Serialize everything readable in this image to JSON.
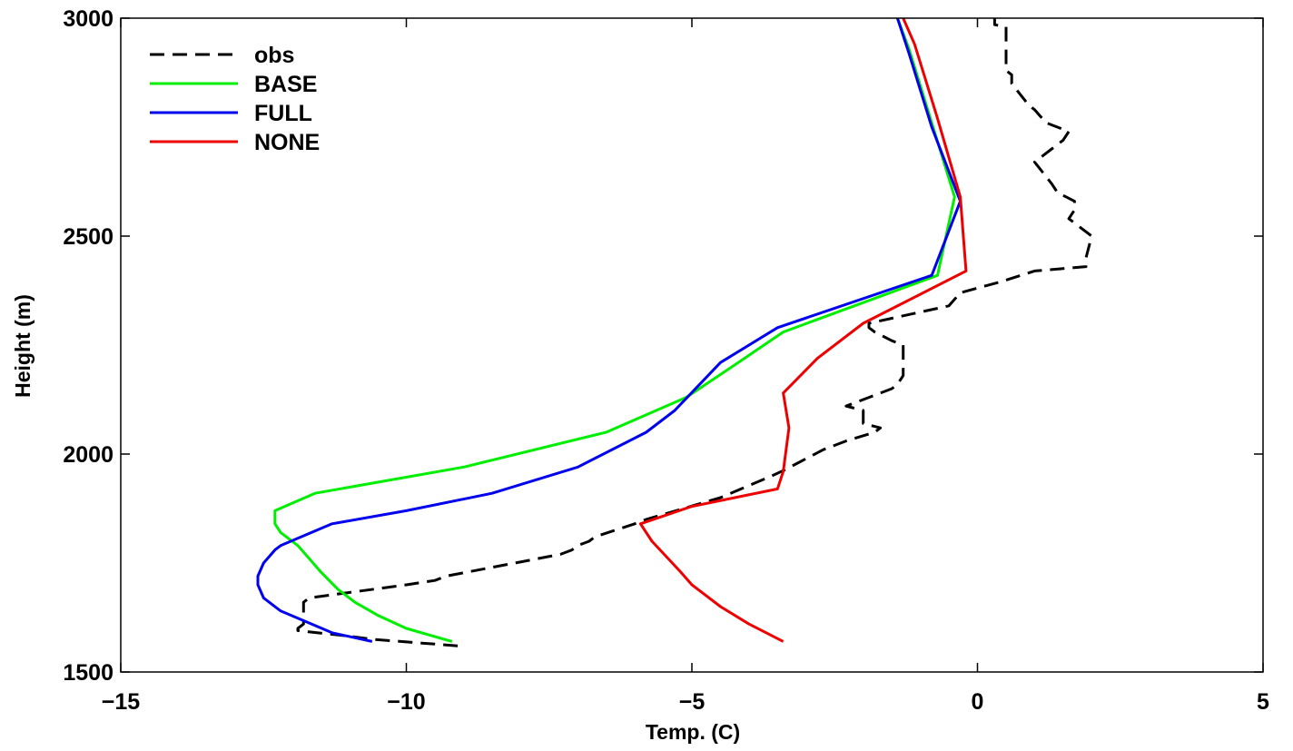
{
  "chart_data": {
    "type": "line",
    "title": "",
    "xlabel": "Temp. (C)",
    "ylabel": "Height (m)",
    "xlim": [
      -15,
      5
    ],
    "ylim": [
      1500,
      3000
    ],
    "xticks": [
      -15,
      -10,
      -5,
      0,
      5
    ],
    "xtick_labels": [
      "−15",
      "−10",
      "−5",
      "0",
      "5"
    ],
    "yticks": [
      1500,
      2000,
      2500,
      3000
    ],
    "ytick_labels": [
      "1500",
      "2000",
      "2500",
      "3000"
    ],
    "grid": false,
    "legend_position": "top-left",
    "series": [
      {
        "name": "obs",
        "color": "#000000",
        "style": "dashed",
        "points": [
          [
            -9.1,
            1560
          ],
          [
            -10.6,
            1575
          ],
          [
            -11.0,
            1582
          ],
          [
            -11.9,
            1595
          ],
          [
            -11.9,
            1600
          ],
          [
            -11.8,
            1610
          ],
          [
            -11.8,
            1660
          ],
          [
            -11.7,
            1670
          ],
          [
            -10.0,
            1700
          ],
          [
            -9.5,
            1710
          ],
          [
            -9.3,
            1720
          ],
          [
            -7.3,
            1770
          ],
          [
            -7.1,
            1780
          ],
          [
            -7.0,
            1790
          ],
          [
            -6.8,
            1800
          ],
          [
            -6.7,
            1810
          ],
          [
            -6.0,
            1840
          ],
          [
            -5.8,
            1850
          ],
          [
            -4.5,
            1900
          ],
          [
            -3.6,
            1950
          ],
          [
            -3.4,
            1962
          ],
          [
            -2.7,
            2010
          ],
          [
            -2.3,
            2030
          ],
          [
            -1.8,
            2050
          ],
          [
            -1.7,
            2060
          ],
          [
            -2.0,
            2070
          ],
          [
            -2.0,
            2090
          ],
          [
            -2.0,
            2100
          ],
          [
            -2.3,
            2110
          ],
          [
            -1.9,
            2130
          ],
          [
            -1.5,
            2150
          ],
          [
            -1.4,
            2160
          ],
          [
            -1.3,
            2180
          ],
          [
            -1.3,
            2230
          ],
          [
            -1.3,
            2250
          ],
          [
            -1.5,
            2260
          ],
          [
            -1.8,
            2280
          ],
          [
            -1.9,
            2290
          ],
          [
            -1.9,
            2300
          ],
          [
            -0.5,
            2340
          ],
          [
            -0.3,
            2370
          ],
          [
            0.4,
            2395
          ],
          [
            1.0,
            2420
          ],
          [
            1.9,
            2430
          ],
          [
            1.9,
            2450
          ],
          [
            2.0,
            2500
          ],
          [
            1.9,
            2510
          ],
          [
            1.7,
            2530
          ],
          [
            1.6,
            2540
          ],
          [
            1.7,
            2560
          ],
          [
            1.7,
            2580
          ],
          [
            1.4,
            2600
          ],
          [
            1.3,
            2620
          ],
          [
            1.0,
            2670
          ],
          [
            1.3,
            2700
          ],
          [
            1.5,
            2720
          ],
          [
            1.6,
            2740
          ],
          [
            1.4,
            2750
          ],
          [
            1.2,
            2760
          ],
          [
            1.0,
            2790
          ],
          [
            0.9,
            2800
          ],
          [
            0.6,
            2850
          ],
          [
            0.6,
            2870
          ],
          [
            0.5,
            2880
          ],
          [
            0.5,
            2900
          ],
          [
            0.5,
            2930
          ],
          [
            0.5,
            2980
          ],
          [
            0.3,
            2985
          ],
          [
            0.3,
            3000
          ]
        ]
      },
      {
        "name": "BASE",
        "color": "#00ee00",
        "style": "solid",
        "points": [
          [
            -9.2,
            1570
          ],
          [
            -10.0,
            1600
          ],
          [
            -10.5,
            1630
          ],
          [
            -10.9,
            1660
          ],
          [
            -11.2,
            1690
          ],
          [
            -11.5,
            1730
          ],
          [
            -11.7,
            1760
          ],
          [
            -11.9,
            1790
          ],
          [
            -12.2,
            1820
          ],
          [
            -12.3,
            1840
          ],
          [
            -12.3,
            1870
          ],
          [
            -11.6,
            1910
          ],
          [
            -9.0,
            1970
          ],
          [
            -6.5,
            2050
          ],
          [
            -5.1,
            2130
          ],
          [
            -4.3,
            2200
          ],
          [
            -3.4,
            2280
          ],
          [
            -0.7,
            2410
          ],
          [
            -0.4,
            2590
          ],
          [
            -1.2,
            2930
          ],
          [
            -1.4,
            3000
          ]
        ]
      },
      {
        "name": "FULL",
        "color": "#0000ee",
        "style": "solid",
        "points": [
          [
            -10.6,
            1570
          ],
          [
            -11.3,
            1590
          ],
          [
            -12.2,
            1640
          ],
          [
            -12.5,
            1670
          ],
          [
            -12.6,
            1700
          ],
          [
            -12.6,
            1720
          ],
          [
            -12.5,
            1750
          ],
          [
            -12.3,
            1780
          ],
          [
            -12.2,
            1790
          ],
          [
            -11.3,
            1840
          ],
          [
            -10.0,
            1870
          ],
          [
            -8.5,
            1910
          ],
          [
            -7.0,
            1970
          ],
          [
            -5.8,
            2050
          ],
          [
            -5.3,
            2100
          ],
          [
            -4.5,
            2210
          ],
          [
            -3.5,
            2290
          ],
          [
            -0.8,
            2410
          ],
          [
            -0.3,
            2580
          ],
          [
            -0.8,
            2750
          ],
          [
            -1.2,
            2920
          ],
          [
            -1.4,
            3000
          ]
        ]
      },
      {
        "name": "NONE",
        "color": "#ee0000",
        "style": "solid",
        "points": [
          [
            -3.4,
            1570
          ],
          [
            -3.7,
            1590
          ],
          [
            -4.0,
            1610
          ],
          [
            -4.5,
            1650
          ],
          [
            -4.8,
            1680
          ],
          [
            -5.0,
            1700
          ],
          [
            -5.2,
            1730
          ],
          [
            -5.7,
            1800
          ],
          [
            -5.8,
            1820
          ],
          [
            -5.9,
            1840
          ],
          [
            -5.0,
            1880
          ],
          [
            -3.5,
            1920
          ],
          [
            -3.4,
            1960
          ],
          [
            -3.3,
            2060
          ],
          [
            -3.4,
            2140
          ],
          [
            -2.8,
            2220
          ],
          [
            -2.0,
            2300
          ],
          [
            -0.2,
            2420
          ],
          [
            -0.3,
            2590
          ],
          [
            -0.7,
            2770
          ],
          [
            -1.1,
            2940
          ],
          [
            -1.3,
            3000
          ]
        ]
      }
    ]
  }
}
